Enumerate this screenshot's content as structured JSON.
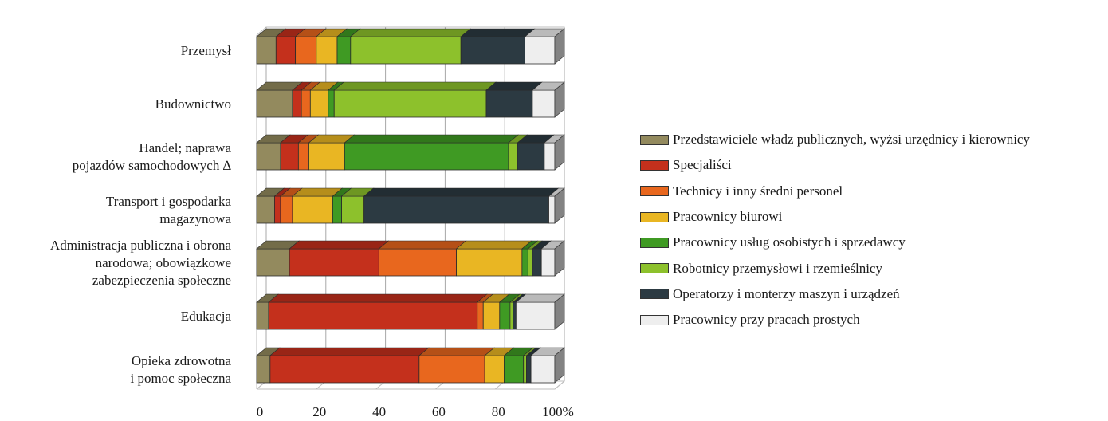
{
  "chart_data": {
    "type": "bar",
    "orientation": "horizontal",
    "stacked": true,
    "style": "3d",
    "categories": [
      [
        "Przemysł"
      ],
      [
        "Budownictwo"
      ],
      [
        "Handel; naprawa",
        "pojazdów samochodowych ∆"
      ],
      [
        "Transport i gospodarka",
        "magazynowa"
      ],
      [
        "Administracja publiczna i obrona",
        "narodowa; obowiązkowe",
        "zabezpieczenia społeczne"
      ],
      [
        "Edukacja"
      ],
      [
        "Opieka zdrowotna",
        "i pomoc społeczna"
      ]
    ],
    "series": [
      {
        "name": "Przedstawiciele władz publicznych, wyżsi urzędnicy i kierownicy",
        "color": "#938a5e",
        "values": [
          6.5,
          12,
          8,
          6,
          11,
          4,
          4.5
        ]
      },
      {
        "name": "Specjaliści",
        "color": "#c4301c",
        "values": [
          6.5,
          3,
          6,
          2,
          30,
          70,
          50
        ]
      },
      {
        "name": "Technicy i inny średni personel",
        "color": "#e8671e",
        "values": [
          7,
          3,
          3.5,
          4,
          26,
          2,
          22
        ]
      },
      {
        "name": "Pracownicy biurowi",
        "color": "#e9b623",
        "values": [
          7,
          6,
          12,
          13.5,
          22,
          5.5,
          6.5
        ]
      },
      {
        "name": "Pracownicy usług osobistych i sprzedawcy",
        "color": "#3f9a23",
        "values": [
          4.5,
          2,
          55,
          3,
          2,
          3.5,
          6.5
        ]
      },
      {
        "name": "Robotnicy przemysłowi i rzemieślnicy",
        "color": "#8dc12c",
        "values": [
          37,
          51,
          3,
          7.5,
          1.5,
          1,
          1
        ]
      },
      {
        "name": "Operatorzy i monterzy maszyn i urządzeń",
        "color": "#2c3a42",
        "values": [
          21.5,
          15.5,
          9,
          62,
          3,
          1,
          1.5
        ]
      },
      {
        "name": "Pracownicy przy pracach prostych",
        "color": "#eeeeee",
        "values": [
          10,
          7.5,
          3.5,
          2,
          4.5,
          13,
          8
        ]
      }
    ],
    "xlim": [
      0,
      100
    ],
    "xticks": [
      "0",
      "20",
      "40",
      "60",
      "80",
      "100%"
    ],
    "grid": true,
    "legend_position": "right"
  }
}
